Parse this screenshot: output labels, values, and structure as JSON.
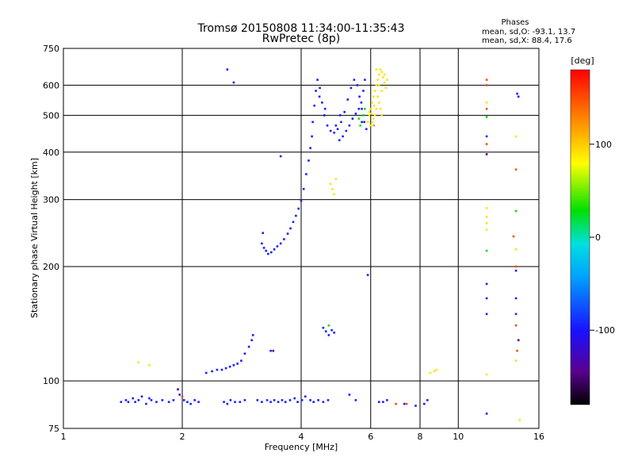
{
  "chart_data": {
    "type": "scatter",
    "title": "Tromsø 20150808 11:34:00-11:35:43",
    "subtitle": "RwPretec (8p)",
    "info": {
      "heading": "Phases",
      "line_o": "mean, sd,O: -93.1, 13.7",
      "line_x": "mean, sd,X:  88.4, 17.6"
    },
    "xlabel": "Frequency [MHz]",
    "ylabel": "Stationary phase Virtual Height [km]",
    "x_scale": "log",
    "y_scale": "log",
    "xlim": [
      1,
      16
    ],
    "ylim": [
      75,
      750
    ],
    "x_ticks": [
      {
        "value": 1,
        "label": "1"
      },
      {
        "value": 2,
        "label": "2"
      },
      {
        "value": 4,
        "label": "4"
      },
      {
        "value": 6,
        "label": "6"
      },
      {
        "value": 8,
        "label": "8"
      },
      {
        "value": 10,
        "label": "10"
      },
      {
        "value": 16,
        "label": "16"
      }
    ],
    "y_ticks": [
      {
        "value": 75,
        "label": "75"
      },
      {
        "value": 100,
        "label": "100"
      },
      {
        "value": 200,
        "label": "200"
      },
      {
        "value": 300,
        "label": "300"
      },
      {
        "value": 400,
        "label": "400"
      },
      {
        "value": 500,
        "label": "500"
      },
      {
        "value": 600,
        "label": "600"
      },
      {
        "value": 750,
        "label": "750"
      }
    ],
    "grid": true,
    "colorbar": {
      "label": "[deg]",
      "range": [
        -180,
        180
      ],
      "ticks": [
        {
          "value": 100,
          "label": "100"
        },
        {
          "value": 0,
          "label": "0"
        },
        {
          "value": -100,
          "label": "-100"
        }
      ]
    },
    "series": [
      {
        "points": [
          [
            1.4,
            88
          ],
          [
            1.44,
            89
          ],
          [
            1.46,
            88
          ],
          [
            1.5,
            90
          ],
          [
            1.52,
            88
          ],
          [
            1.55,
            89
          ],
          [
            1.58,
            91
          ],
          [
            1.62,
            87
          ],
          [
            1.65,
            90
          ],
          [
            1.67,
            89
          ],
          [
            1.72,
            88
          ],
          [
            1.78,
            89
          ],
          [
            1.85,
            88
          ],
          [
            1.9,
            89
          ],
          [
            1.97,
            92
          ],
          [
            2.02,
            89
          ],
          [
            2.06,
            88
          ],
          [
            2.1,
            87
          ],
          [
            2.15,
            89
          ],
          [
            2.2,
            88
          ],
          [
            2.55,
            88
          ],
          [
            2.6,
            87
          ],
          [
            2.65,
            89
          ],
          [
            2.72,
            88
          ],
          [
            2.8,
            88
          ],
          [
            2.88,
            89
          ],
          [
            3.1,
            89
          ],
          [
            3.18,
            88
          ],
          [
            3.28,
            89
          ],
          [
            3.35,
            88
          ],
          [
            3.42,
            89
          ],
          [
            3.5,
            88
          ],
          [
            3.58,
            89
          ],
          [
            3.65,
            88
          ],
          [
            3.75,
            89
          ],
          [
            3.85,
            90
          ],
          [
            3.92,
            88
          ],
          [
            4.02,
            89
          ],
          [
            4.1,
            91
          ],
          [
            4.22,
            89
          ],
          [
            4.3,
            88
          ],
          [
            4.42,
            89
          ],
          [
            4.55,
            88
          ],
          [
            4.68,
            89
          ],
          [
            5.3,
            92
          ],
          [
            5.5,
            89
          ],
          [
            6.3,
            88
          ],
          [
            6.45,
            88
          ],
          [
            6.6,
            89
          ],
          [
            7.3,
            87
          ],
          [
            7.8,
            86
          ],
          [
            8.2,
            87
          ],
          [
            8.35,
            89
          ],
          [
            2.3,
            105
          ],
          [
            2.38,
            106
          ],
          [
            2.45,
            107
          ],
          [
            2.52,
            107
          ],
          [
            2.58,
            108
          ],
          [
            2.64,
            109
          ],
          [
            2.7,
            110
          ],
          [
            2.76,
            111
          ],
          [
            2.82,
            113
          ],
          [
            2.88,
            118
          ],
          [
            2.95,
            123
          ],
          [
            3.0,
            128
          ],
          [
            3.02,
            132
          ],
          [
            3.35,
            120
          ],
          [
            4.55,
            138
          ],
          [
            4.62,
            135
          ],
          [
            4.7,
            132
          ],
          [
            4.78,
            136
          ],
          [
            4.85,
            134
          ],
          [
            3.18,
            230
          ],
          [
            3.22,
            224
          ],
          [
            3.26,
            220
          ],
          [
            3.3,
            216
          ],
          [
            3.36,
            218
          ],
          [
            3.42,
            222
          ],
          [
            3.48,
            226
          ],
          [
            3.55,
            230
          ],
          [
            3.62,
            236
          ],
          [
            3.7,
            244
          ],
          [
            3.76,
            252
          ],
          [
            3.82,
            262
          ],
          [
            3.88,
            272
          ],
          [
            3.94,
            284
          ],
          [
            4.0,
            298
          ],
          [
            4.06,
            320
          ],
          [
            4.12,
            350
          ],
          [
            4.18,
            380
          ],
          [
            4.22,
            410
          ],
          [
            4.26,
            440
          ],
          [
            4.28,
            480
          ],
          [
            4.32,
            530
          ],
          [
            4.36,
            580
          ],
          [
            4.4,
            620
          ],
          [
            4.46,
            590
          ],
          [
            4.52,
            540
          ],
          [
            4.58,
            500
          ],
          [
            4.66,
            470
          ],
          [
            4.75,
            455
          ],
          [
            4.85,
            450
          ],
          [
            4.95,
            460
          ],
          [
            5.05,
            480
          ],
          [
            5.15,
            510
          ],
          [
            5.25,
            550
          ],
          [
            5.35,
            590
          ],
          [
            5.45,
            620
          ],
          [
            5.55,
            600
          ],
          [
            5.62,
            560
          ],
          [
            5.7,
            520
          ],
          [
            5.78,
            480
          ],
          [
            5.85,
            460
          ],
          [
            5.0,
            430
          ],
          [
            5.1,
            440
          ],
          [
            5.2,
            455
          ],
          [
            5.3,
            470
          ],
          [
            5.4,
            490
          ],
          [
            5.5,
            505
          ],
          [
            5.6,
            520
          ],
          [
            5.68,
            540
          ],
          [
            5.75,
            580
          ],
          [
            5.8,
            620
          ],
          [
            4.9,
            470
          ],
          [
            5.02,
            500
          ],
          [
            4.6,
            520
          ],
          [
            4.45,
            560
          ],
          [
            3.55,
            390
          ],
          [
            2.6,
            660
          ],
          [
            2.7,
            610
          ],
          [
            5.7,
            480
          ],
          [
            6.1,
            470
          ],
          [
            3.2,
            245
          ],
          [
            5.9,
            190
          ],
          [
            11.8,
            180
          ],
          [
            11.8,
            165
          ],
          [
            11.8,
            150
          ],
          [
            14.0,
            165
          ],
          [
            14.0,
            150
          ],
          [
            14.1,
            570
          ],
          [
            14.2,
            560
          ],
          [
            11.8,
            82
          ],
          [
            14.0,
            195
          ],
          [
            11.8,
            440
          ]
        ],
        "phase": -95
      },
      {
        "points": [
          [
            5.9,
            480
          ],
          [
            5.95,
            500
          ],
          [
            6.0,
            520
          ],
          [
            6.05,
            540
          ],
          [
            6.1,
            560
          ],
          [
            6.15,
            580
          ],
          [
            6.2,
            600
          ],
          [
            6.25,
            620
          ],
          [
            6.3,
            640
          ],
          [
            6.35,
            660
          ],
          [
            6.4,
            650
          ],
          [
            6.45,
            630
          ],
          [
            6.5,
            610
          ],
          [
            6.55,
            590
          ],
          [
            6.25,
            560
          ],
          [
            6.3,
            540
          ],
          [
            6.35,
            520
          ],
          [
            6.4,
            500
          ],
          [
            6.2,
            520
          ],
          [
            6.15,
            500
          ],
          [
            6.1,
            490
          ],
          [
            6.05,
            480
          ],
          [
            6.0,
            470
          ],
          [
            6.2,
            660
          ],
          [
            6.3,
            600
          ],
          [
            6.4,
            580
          ],
          [
            6.5,
            640
          ],
          [
            6.6,
            620
          ],
          [
            6.02,
            505
          ],
          [
            6.12,
            530
          ],
          [
            4.75,
            330
          ],
          [
            4.8,
            320
          ],
          [
            4.85,
            310
          ],
          [
            4.9,
            340
          ],
          [
            1.55,
            112
          ],
          [
            1.65,
            110
          ],
          [
            8.5,
            105
          ],
          [
            8.7,
            106
          ],
          [
            8.8,
            107
          ],
          [
            11.8,
            104
          ],
          [
            11.8,
            285
          ],
          [
            11.8,
            270
          ],
          [
            11.8,
            250
          ],
          [
            11.8,
            260
          ],
          [
            14.0,
            113
          ],
          [
            14.0,
            222
          ],
          [
            14.0,
            440
          ],
          [
            11.8,
            540
          ],
          [
            14.3,
            79
          ],
          [
            5.95,
            510
          ],
          [
            6.08,
            470
          ]
        ],
        "phase": 90
      },
      {
        "points": [
          [
            11.8,
            600
          ],
          [
            11.8,
            620
          ],
          [
            11.8,
            520
          ],
          [
            11.8,
            420
          ],
          [
            14.0,
            360
          ],
          [
            14.0,
            200
          ],
          [
            14.0,
            140
          ],
          [
            13.8,
            240
          ],
          [
            14.1,
            120
          ],
          [
            6.95,
            87
          ],
          [
            7.4,
            87
          ],
          [
            2.0,
            91
          ]
        ],
        "phase": 150
      },
      {
        "points": [
          [
            5.65,
            470
          ],
          [
            5.75,
            500
          ],
          [
            5.8,
            520
          ],
          [
            5.6,
            490
          ],
          [
            4.7,
            140
          ],
          [
            11.8,
            220
          ],
          [
            14.0,
            280
          ],
          [
            11.8,
            495
          ]
        ],
        "phase": 30
      },
      {
        "points": [
          [
            1.95,
            95
          ],
          [
            11.8,
            395
          ],
          [
            14.2,
            128
          ],
          [
            3.4,
            120
          ]
        ],
        "phase": -150
      }
    ]
  }
}
